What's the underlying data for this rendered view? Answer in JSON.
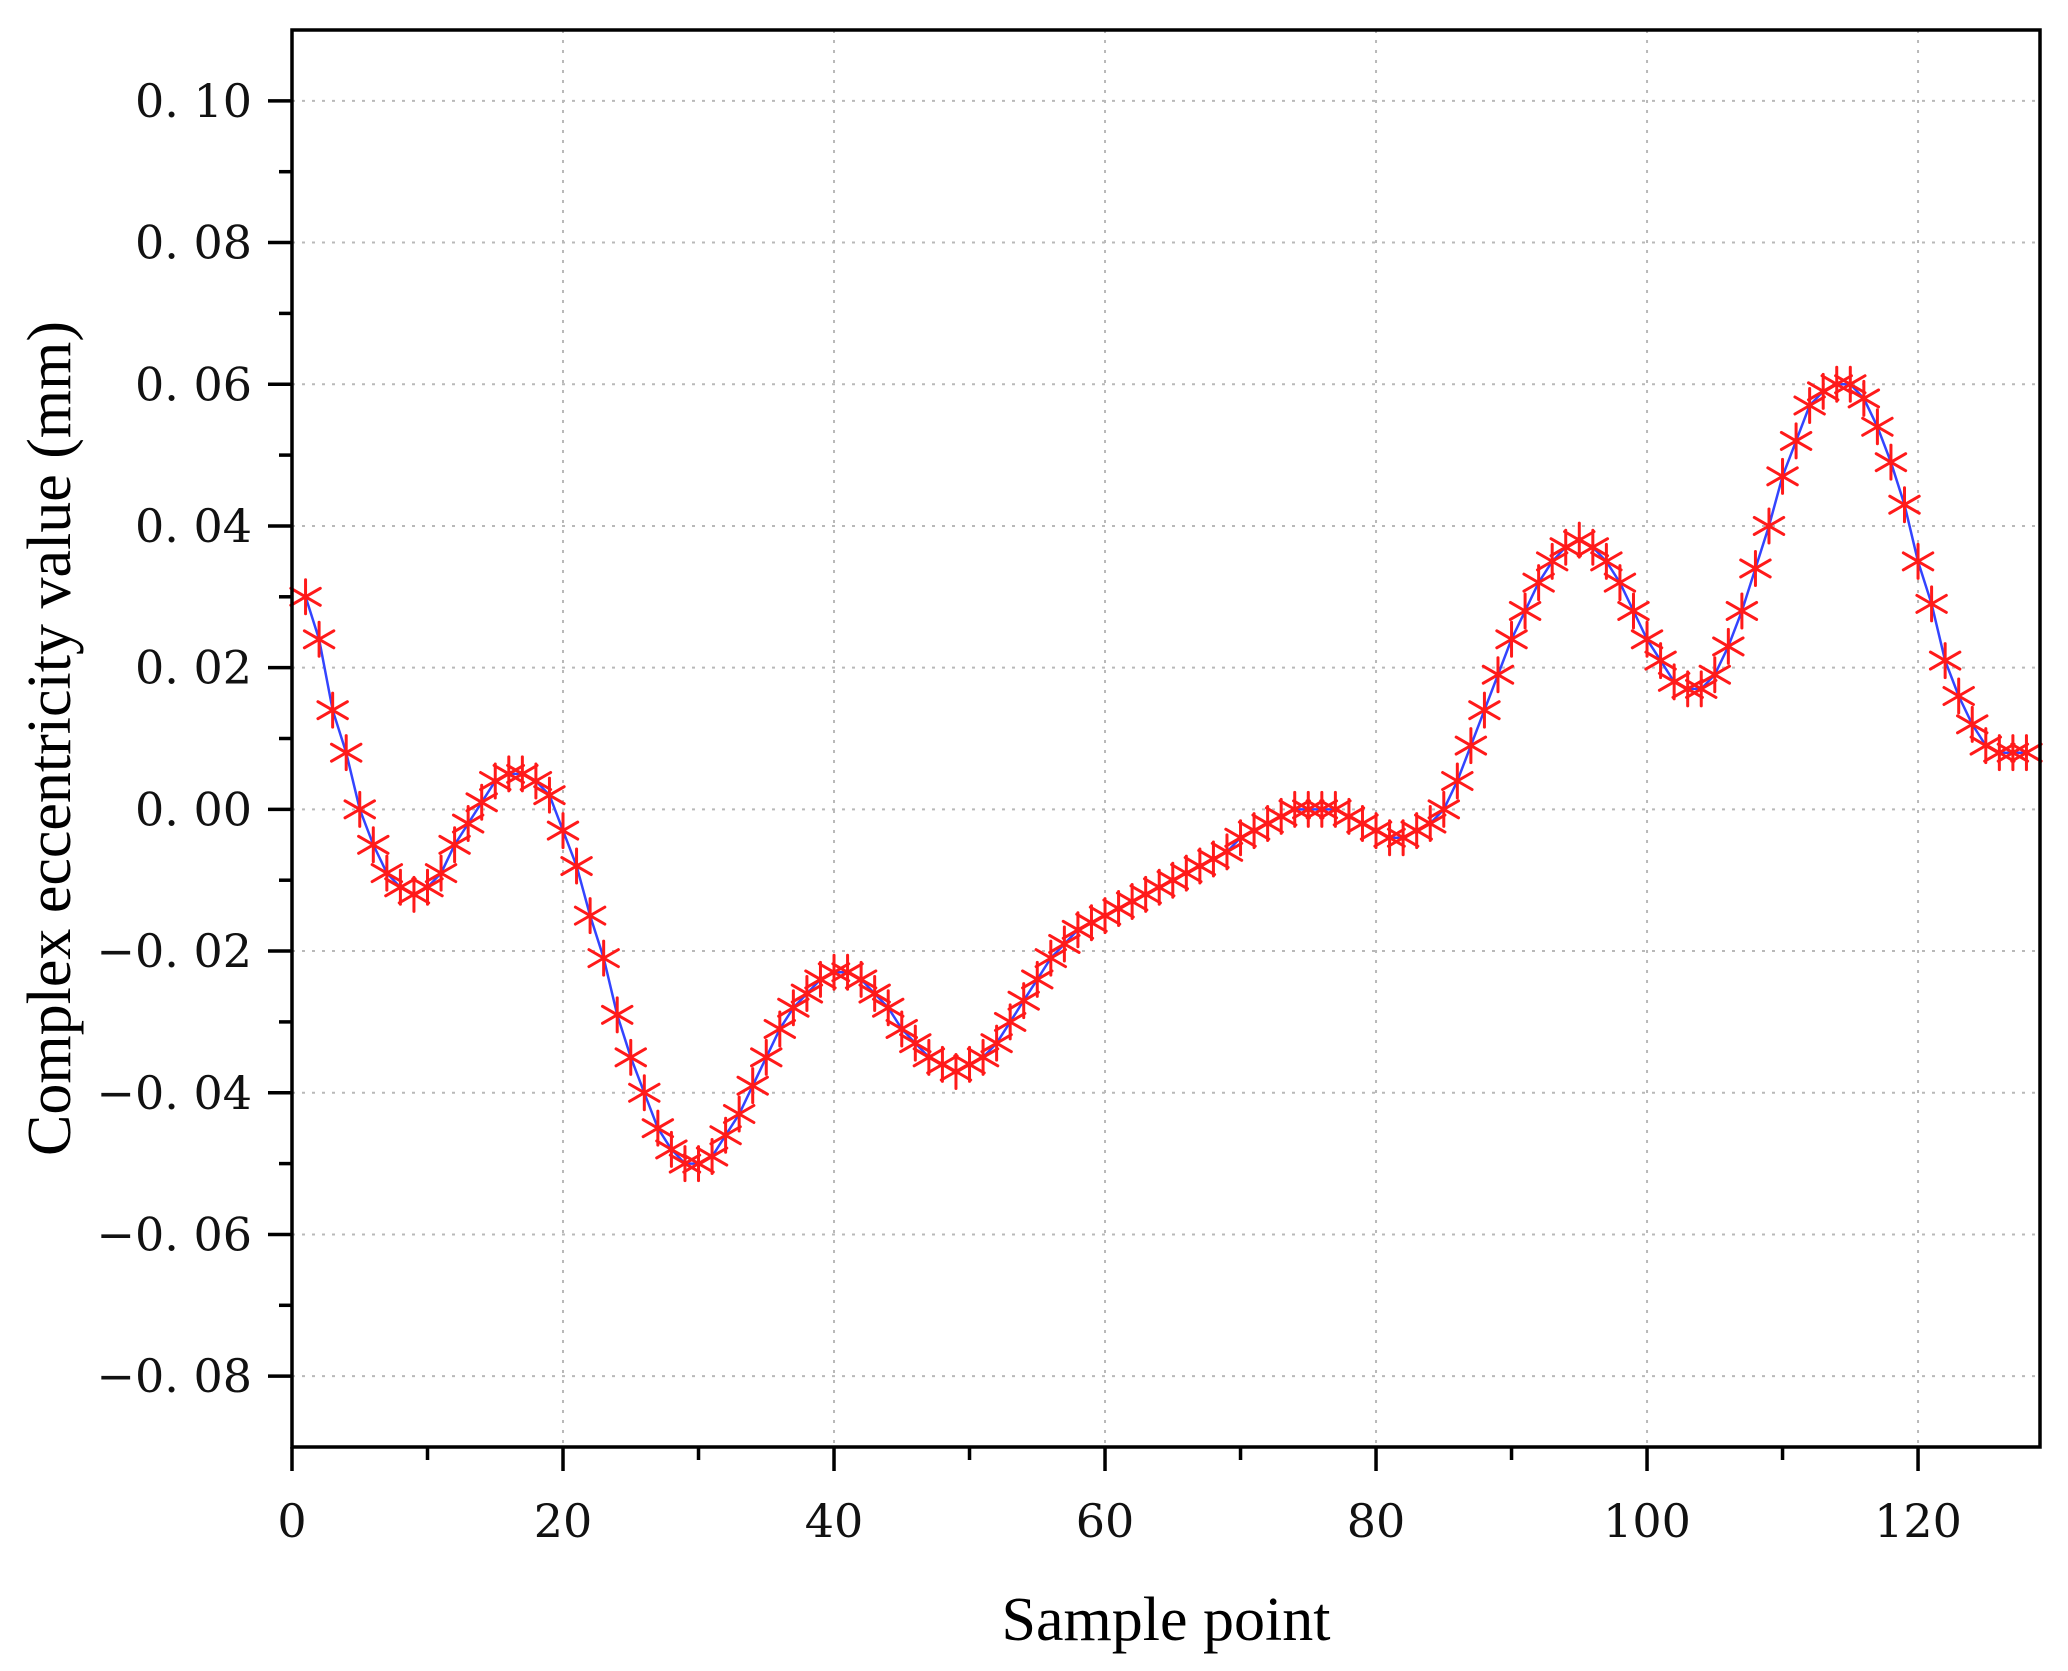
{
  "chart_data": {
    "type": "line",
    "title": "",
    "xlabel": "Sample point",
    "ylabel": "Complex eccentricity value (mm)",
    "xlim": [
      0,
      129
    ],
    "ylim": [
      -0.09,
      0.11
    ],
    "xticks": [
      0,
      20,
      40,
      60,
      80,
      100,
      120
    ],
    "xtick_labels": [
      "0",
      "20",
      "40",
      "60",
      "80",
      "100",
      "120"
    ],
    "yticks": [
      -0.08,
      -0.06,
      -0.04,
      -0.02,
      0.0,
      0.02,
      0.04,
      0.06,
      0.08,
      0.1
    ],
    "ytick_labels": [
      "−0. 08",
      "−0. 06",
      "−0. 04",
      "−0. 02",
      "0. 00",
      "0. 02",
      "0. 04",
      "0. 06",
      "0. 08",
      "0. 10"
    ],
    "grid": true,
    "marker": "asterisk",
    "line_color": "#3344ff",
    "marker_color": "#ff1a1a",
    "series": [
      {
        "x": [
          1,
          2,
          3,
          4,
          5,
          6,
          7,
          8,
          9,
          10,
          11,
          12,
          13,
          14,
          15,
          16,
          17,
          18,
          19,
          20,
          21,
          22,
          23,
          24,
          25,
          26,
          27,
          28,
          29,
          30,
          31,
          32,
          33,
          34,
          35,
          36,
          37,
          38,
          39,
          40,
          41,
          42,
          43,
          44,
          45,
          46,
          47,
          48,
          49,
          50,
          51,
          52,
          53,
          54,
          55,
          56,
          57,
          58,
          59,
          60,
          61,
          62,
          63,
          64,
          65,
          66,
          67,
          68,
          69,
          70,
          71,
          72,
          73,
          74,
          75,
          76,
          77,
          78,
          79,
          80,
          81,
          82,
          83,
          84,
          85,
          86,
          87,
          88,
          89,
          90,
          91,
          92,
          93,
          94,
          95,
          96,
          97,
          98,
          99,
          100,
          101,
          102,
          103,
          104,
          105,
          106,
          107,
          108,
          109,
          110,
          111,
          112,
          113,
          114,
          115,
          116,
          117,
          118,
          119,
          120,
          121,
          122,
          123,
          124,
          125,
          126,
          127,
          128
        ],
        "values": [
          0.03,
          0.024,
          0.014,
          0.008,
          0.0,
          -0.005,
          -0.009,
          -0.011,
          -0.012,
          -0.011,
          -0.009,
          -0.005,
          -0.002,
          0.001,
          0.004,
          0.005,
          0.005,
          0.004,
          0.002,
          -0.003,
          -0.008,
          -0.015,
          -0.021,
          -0.029,
          -0.035,
          -0.04,
          -0.045,
          -0.048,
          -0.05,
          -0.05,
          -0.049,
          -0.046,
          -0.043,
          -0.039,
          -0.035,
          -0.031,
          -0.028,
          -0.026,
          -0.024,
          -0.023,
          -0.023,
          -0.024,
          -0.026,
          -0.028,
          -0.031,
          -0.033,
          -0.035,
          -0.036,
          -0.037,
          -0.036,
          -0.035,
          -0.033,
          -0.03,
          -0.027,
          -0.024,
          -0.021,
          -0.019,
          -0.017,
          -0.016,
          -0.015,
          -0.014,
          -0.013,
          -0.012,
          -0.011,
          -0.01,
          -0.009,
          -0.008,
          -0.007,
          -0.006,
          -0.004,
          -0.003,
          -0.002,
          -0.001,
          0.0,
          0.0,
          0.0,
          0.0,
          -0.001,
          -0.002,
          -0.003,
          -0.004,
          -0.004,
          -0.003,
          -0.002,
          0.0,
          0.004,
          0.009,
          0.014,
          0.019,
          0.024,
          0.028,
          0.032,
          0.035,
          0.037,
          0.038,
          0.037,
          0.035,
          0.032,
          0.028,
          0.024,
          0.021,
          0.018,
          0.017,
          0.017,
          0.019,
          0.023,
          0.028,
          0.034,
          0.04,
          0.047,
          0.052,
          0.057,
          0.059,
          0.06,
          0.06,
          0.058,
          0.054,
          0.049,
          0.043,
          0.035,
          0.029,
          0.021,
          0.016,
          0.012,
          0.009,
          0.008,
          0.008,
          0.008
        ]
      }
    ]
  }
}
